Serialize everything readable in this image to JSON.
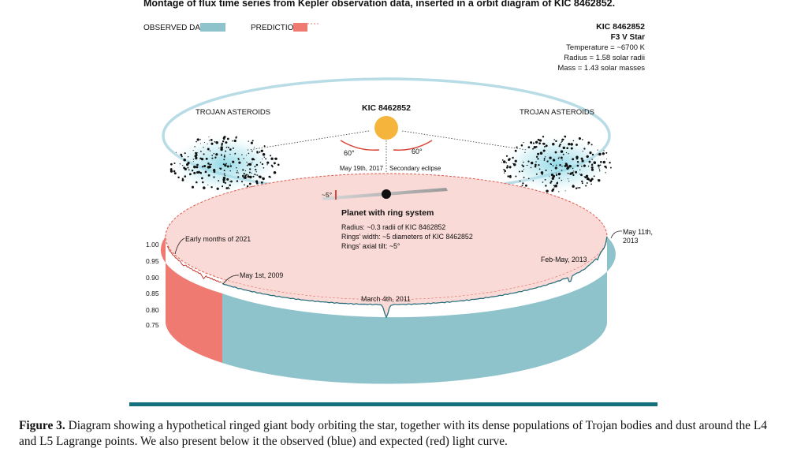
{
  "figure": {
    "title": "Montage of flux time series from Kepler observation data, inserted in a orbit diagram of KIC 8462852.",
    "legend": {
      "observed_label": "OBSERVED DATA",
      "prediction_label": "PREDICTION",
      "observed_color": "#8fc3cb",
      "prediction_color": "#ee7a72"
    },
    "star_info": {
      "name": "KIC 8462852",
      "type": "F3 V Star",
      "temperature": "Temperature = ~6700 K",
      "radius": "Radius = 1.58 solar radii",
      "mass": "Mass = 1.43 solar masses"
    },
    "orbit": {
      "star_label": "KIC 8462852",
      "trojan_left": "TROJAN ASTEROIDS",
      "trojan_right": "TROJAN ASTEROIDS",
      "angle_left": "60°",
      "angle_right": "60°",
      "eclipse_date": "May 19th, 2017",
      "eclipse_label": "Secondary eclipse",
      "tilt_label": "~5°"
    },
    "planet": {
      "title": "Planet with ring system",
      "radius": "Radius: ~0.3 radii of KIC 8462852",
      "rings_width": "Rings' width: ~5 diameters of KIC 8462852",
      "rings_tilt": "Rings' axial tilt: ~5°"
    },
    "annotations": {
      "early_2021": "Early months of 2021",
      "may_2009": "May 1st, 2009",
      "march_2011": "March 4th, 2011",
      "feb_may_2013": "Feb-May, 2013",
      "may_2013_line1": "May 11th,",
      "may_2013_line2": "2013"
    },
    "colors": {
      "orbit_ring": "#b8dce6",
      "star": "#f5b53d",
      "angle_arc": "#d9473a",
      "disk_fill": "#f9dad6",
      "band_blue": "#8fc3cb",
      "band_red": "#ee7a72",
      "curve": "#1f6a78",
      "rule": "#14707a"
    }
  },
  "chart_data": {
    "type": "line",
    "ylabel": "",
    "yticks": [
      "1.00",
      "0.95",
      "0.90",
      "0.85",
      "0.80",
      "0.75"
    ],
    "ylim": [
      0.75,
      1.0
    ],
    "series": [
      {
        "name": "OBSERVED DATA",
        "points": [
          {
            "date": "May 1st, 2009",
            "flux": 0.905
          },
          {
            "date": "March 4th, 2011",
            "flux": 0.78
          },
          {
            "date": "Feb-May, 2013",
            "flux": 0.875
          },
          {
            "date": "May 11th, 2013",
            "flux": 1.0
          }
        ]
      },
      {
        "name": "PREDICTION",
        "points": [
          {
            "date": "Early months of 2021",
            "flux": 1.0
          }
        ]
      }
    ]
  },
  "caption": {
    "label": "Figure 3.",
    "text": "Diagram showing a hypothetical ringed giant body orbiting the star, together with its dense populations of Trojan bodies and dust around the L4 and L5 Lagrange points. We also present below it the observed (blue) and expected (red) light curve."
  }
}
